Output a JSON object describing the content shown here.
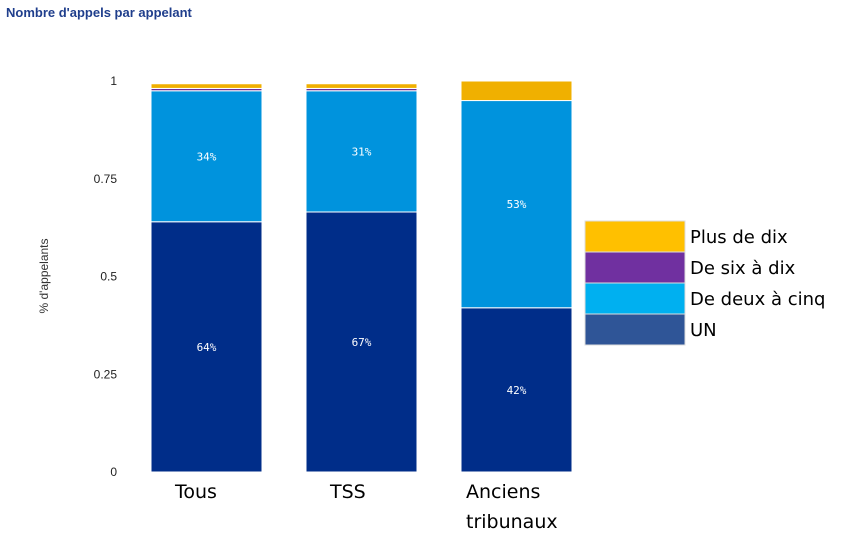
{
  "chart_data": {
    "type": "bar",
    "stacked": true,
    "title": "Nombre d'appels par appelant",
    "ylabel": "% d'appelants",
    "xlabel": "",
    "ylim": [
      0,
      1
    ],
    "yticks": [
      {
        "value": 0,
        "label": "0"
      },
      {
        "value": 0.25,
        "label": "0.25"
      },
      {
        "value": 0.5,
        "label": "0.5"
      },
      {
        "value": 0.75,
        "label": "0.75"
      },
      {
        "value": 1,
        "label": "1"
      }
    ],
    "categories": [
      {
        "lines": [
          "Tous"
        ]
      },
      {
        "lines": [
          "TSS"
        ]
      },
      {
        "lines": [
          "Anciens",
          "tribunaux"
        ]
      }
    ],
    "series": [
      {
        "name": "UN",
        "color": "#002d89",
        "values": [
          0.64,
          0.665,
          0.42
        ],
        "labels": [
          "64%",
          "67%",
          "42%"
        ]
      },
      {
        "name": "De deux à cinq",
        "color": "#0093dd",
        "values": [
          0.335,
          0.31,
          0.53
        ],
        "labels": [
          "34%",
          "31%",
          "53%"
        ]
      },
      {
        "name": "De six à dix",
        "color": "#6e3099",
        "values": [
          0.006,
          0.006,
          0.0
        ],
        "labels": [
          "",
          "",
          ""
        ]
      },
      {
        "name": "Plus de dix",
        "color": "#f0b000",
        "values": [
          0.012,
          0.012,
          0.05
        ],
        "labels": [
          "",
          "",
          ""
        ]
      }
    ],
    "legend": {
      "position": "right",
      "order": [
        "Plus de dix",
        "De six à dix",
        "De deux à cinq",
        "UN"
      ],
      "swatch_colors": {
        "Plus de dix": "#ffc000",
        "De six à dix": "#7030a0",
        "De deux à cinq": "#00b0f0",
        "UN": "#2f5597"
      }
    },
    "grid": false
  }
}
